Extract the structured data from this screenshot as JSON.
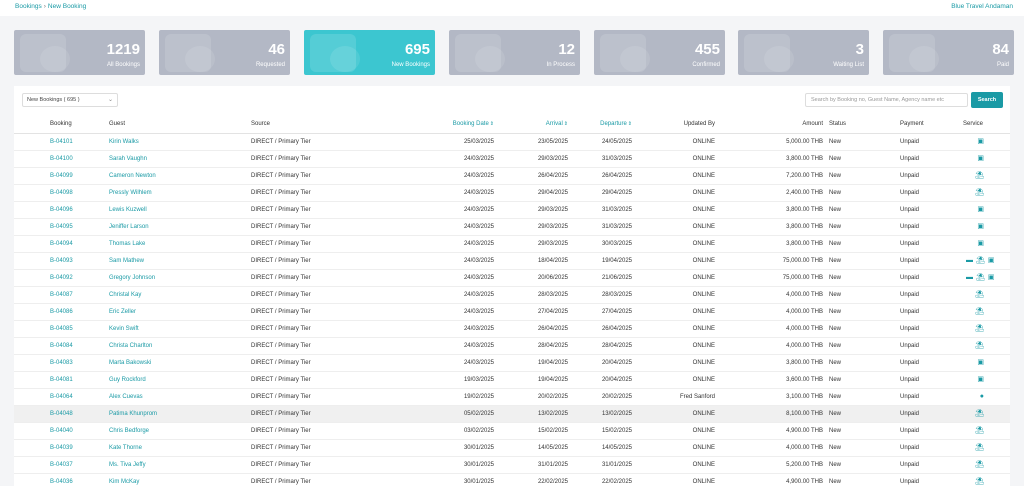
{
  "breadcrumb": {
    "parent": "Bookings",
    "separator": "›",
    "current": "New Booking"
  },
  "brand": "Blue Travel Andaman",
  "stats": [
    {
      "value": "1219",
      "label": "All Bookings",
      "active": false
    },
    {
      "value": "46",
      "label": "Requested",
      "active": false
    },
    {
      "value": "695",
      "label": "New Bookings",
      "active": true
    },
    {
      "value": "12",
      "label": "In Process",
      "active": false
    },
    {
      "value": "455",
      "label": "Confirmed",
      "active": false
    },
    {
      "value": "3",
      "label": "Waiting List",
      "active": false
    },
    {
      "value": "84",
      "label": "Paid",
      "active": false
    }
  ],
  "filter": {
    "selected": "New Bookings ( 695 )"
  },
  "search": {
    "placeholder": "Search by Booking no, Guest Name, Agency name etc",
    "button": "Search"
  },
  "columns": {
    "booking": "Booking",
    "guest": "Guest",
    "source": "Source",
    "booking_date": "Booking Date",
    "arrival": "Arrival",
    "departure": "Departure",
    "updated_by": "Updated By",
    "amount": "Amount",
    "status": "Status",
    "payment": "Payment",
    "service": "Service"
  },
  "colors": {
    "accent": "#1a9aa5",
    "card": "#b3b8c5",
    "card_active": "#3cc6d0"
  },
  "rows": [
    [
      "B-04101",
      "Kirin Walks",
      "DIRECT / Primary Tier",
      "25/03/2025",
      "23/05/2025",
      "24/05/2025",
      "ONLINE",
      "5,000.00 THB",
      "New",
      "Unpaid",
      [
        "bus-icon"
      ]
    ],
    [
      "B-04100",
      "Sarah Vaughn",
      "DIRECT / Primary Tier",
      "24/03/2025",
      "29/03/2025",
      "31/03/2025",
      "ONLINE",
      "3,800.00 THB",
      "New",
      "Unpaid",
      [
        "bus-icon"
      ]
    ],
    [
      "B-04099",
      "Cameron Newton",
      "DIRECT / Primary Tier",
      "24/03/2025",
      "26/04/2025",
      "26/04/2025",
      "ONLINE",
      "7,200.00 THB",
      "New",
      "Unpaid",
      [
        "beach-umbrella-icon"
      ]
    ],
    [
      "B-04098",
      "Pressly Wilhlem",
      "DIRECT / Primary Tier",
      "24/03/2025",
      "29/04/2025",
      "29/04/2025",
      "ONLINE",
      "2,400.00 THB",
      "New",
      "Unpaid",
      [
        "beach-umbrella-icon"
      ]
    ],
    [
      "B-04096",
      "Lewis Kuzwell",
      "DIRECT / Primary Tier",
      "24/03/2025",
      "29/03/2025",
      "31/03/2025",
      "ONLINE",
      "3,800.00 THB",
      "New",
      "Unpaid",
      [
        "bus-icon"
      ]
    ],
    [
      "B-04095",
      "Jeniffer Larson",
      "DIRECT / Primary Tier",
      "24/03/2025",
      "29/03/2025",
      "31/03/2025",
      "ONLINE",
      "3,800.00 THB",
      "New",
      "Unpaid",
      [
        "bus-icon"
      ]
    ],
    [
      "B-04094",
      "Thomas Lake",
      "DIRECT / Primary Tier",
      "24/03/2025",
      "29/03/2025",
      "30/03/2025",
      "ONLINE",
      "3,800.00 THB",
      "New",
      "Unpaid",
      [
        "bus-icon"
      ]
    ],
    [
      "B-04093",
      "Sam Mathew",
      "DIRECT / Primary Tier",
      "24/03/2025",
      "18/04/2025",
      "19/04/2025",
      "ONLINE",
      "75,000.00 THB",
      "New",
      "Unpaid",
      [
        "bed-icon",
        "beach-umbrella-icon",
        "bus-icon"
      ]
    ],
    [
      "B-04092",
      "Gregory Johnson",
      "DIRECT / Primary Tier",
      "24/03/2025",
      "20/06/2025",
      "21/06/2025",
      "ONLINE",
      "75,000.00 THB",
      "New",
      "Unpaid",
      [
        "bed-icon",
        "beach-umbrella-icon",
        "bus-icon"
      ]
    ],
    [
      "B-04087",
      "Christal Kay",
      "DIRECT / Primary Tier",
      "24/03/2025",
      "28/03/2025",
      "28/03/2025",
      "ONLINE",
      "4,000.00 THB",
      "New",
      "Unpaid",
      [
        "beach-umbrella-icon"
      ]
    ],
    [
      "B-04086",
      "Eric Zeller",
      "DIRECT / Primary Tier",
      "24/03/2025",
      "27/04/2025",
      "27/04/2025",
      "ONLINE",
      "4,000.00 THB",
      "New",
      "Unpaid",
      [
        "beach-umbrella-icon"
      ]
    ],
    [
      "B-04085",
      "Kevin Swift",
      "DIRECT / Primary Tier",
      "24/03/2025",
      "26/04/2025",
      "26/04/2025",
      "ONLINE",
      "4,000.00 THB",
      "New",
      "Unpaid",
      [
        "beach-umbrella-icon"
      ]
    ],
    [
      "B-04084",
      "Christa Charlton",
      "DIRECT / Primary Tier",
      "24/03/2025",
      "28/04/2025",
      "28/04/2025",
      "ONLINE",
      "4,000.00 THB",
      "New",
      "Unpaid",
      [
        "beach-umbrella-icon"
      ]
    ],
    [
      "B-04083",
      "Marta Bakowski",
      "DIRECT / Primary Tier",
      "24/03/2025",
      "19/04/2025",
      "20/04/2025",
      "ONLINE",
      "3,800.00 THB",
      "New",
      "Unpaid",
      [
        "bus-icon"
      ]
    ],
    [
      "B-04081",
      "Guy Rockford",
      "DIRECT / Primary Tier",
      "19/03/2025",
      "19/04/2025",
      "20/04/2025",
      "ONLINE",
      "3,600.00 THB",
      "New",
      "Unpaid",
      [
        "bus-icon"
      ]
    ],
    [
      "B-04064",
      "Alex Cuevas",
      "DIRECT / Primary Tier",
      "19/02/2025",
      "20/02/2025",
      "20/02/2025",
      "Fred Sanford",
      "3,100.00 THB",
      "New",
      "Unpaid",
      [
        "location-pin-icon"
      ]
    ],
    [
      "B-04048",
      "Patima Khunprom",
      "DIRECT / Primary Tier",
      "05/02/2025",
      "13/02/2025",
      "13/02/2025",
      "ONLINE",
      "8,100.00 THB",
      "New",
      "Unpaid",
      [
        "beach-umbrella-icon"
      ]
    ],
    [
      "B-04040",
      "Chris Bedforge",
      "DIRECT / Primary Tier",
      "03/02/2025",
      "15/02/2025",
      "15/02/2025",
      "ONLINE",
      "4,900.00 THB",
      "New",
      "Unpaid",
      [
        "beach-umbrella-icon"
      ]
    ],
    [
      "B-04039",
      "Kate Thorne",
      "DIRECT / Primary Tier",
      "30/01/2025",
      "14/05/2025",
      "14/05/2025",
      "ONLINE",
      "4,000.00 THB",
      "New",
      "Unpaid",
      [
        "beach-umbrella-icon"
      ]
    ],
    [
      "B-04037",
      "Ms. Tiva Jeffy",
      "DIRECT / Primary Tier",
      "30/01/2025",
      "31/01/2025",
      "31/01/2025",
      "ONLINE",
      "5,200.00 THB",
      "New",
      "Unpaid",
      [
        "beach-umbrella-icon"
      ]
    ],
    [
      "B-04036",
      "Kim McKay",
      "DIRECT / Primary Tier",
      "30/01/2025",
      "22/02/2025",
      "22/02/2025",
      "ONLINE",
      "4,900.00 THB",
      "New",
      "Unpaid",
      [
        "beach-umbrella-icon"
      ]
    ]
  ],
  "highlighted_row": 16
}
